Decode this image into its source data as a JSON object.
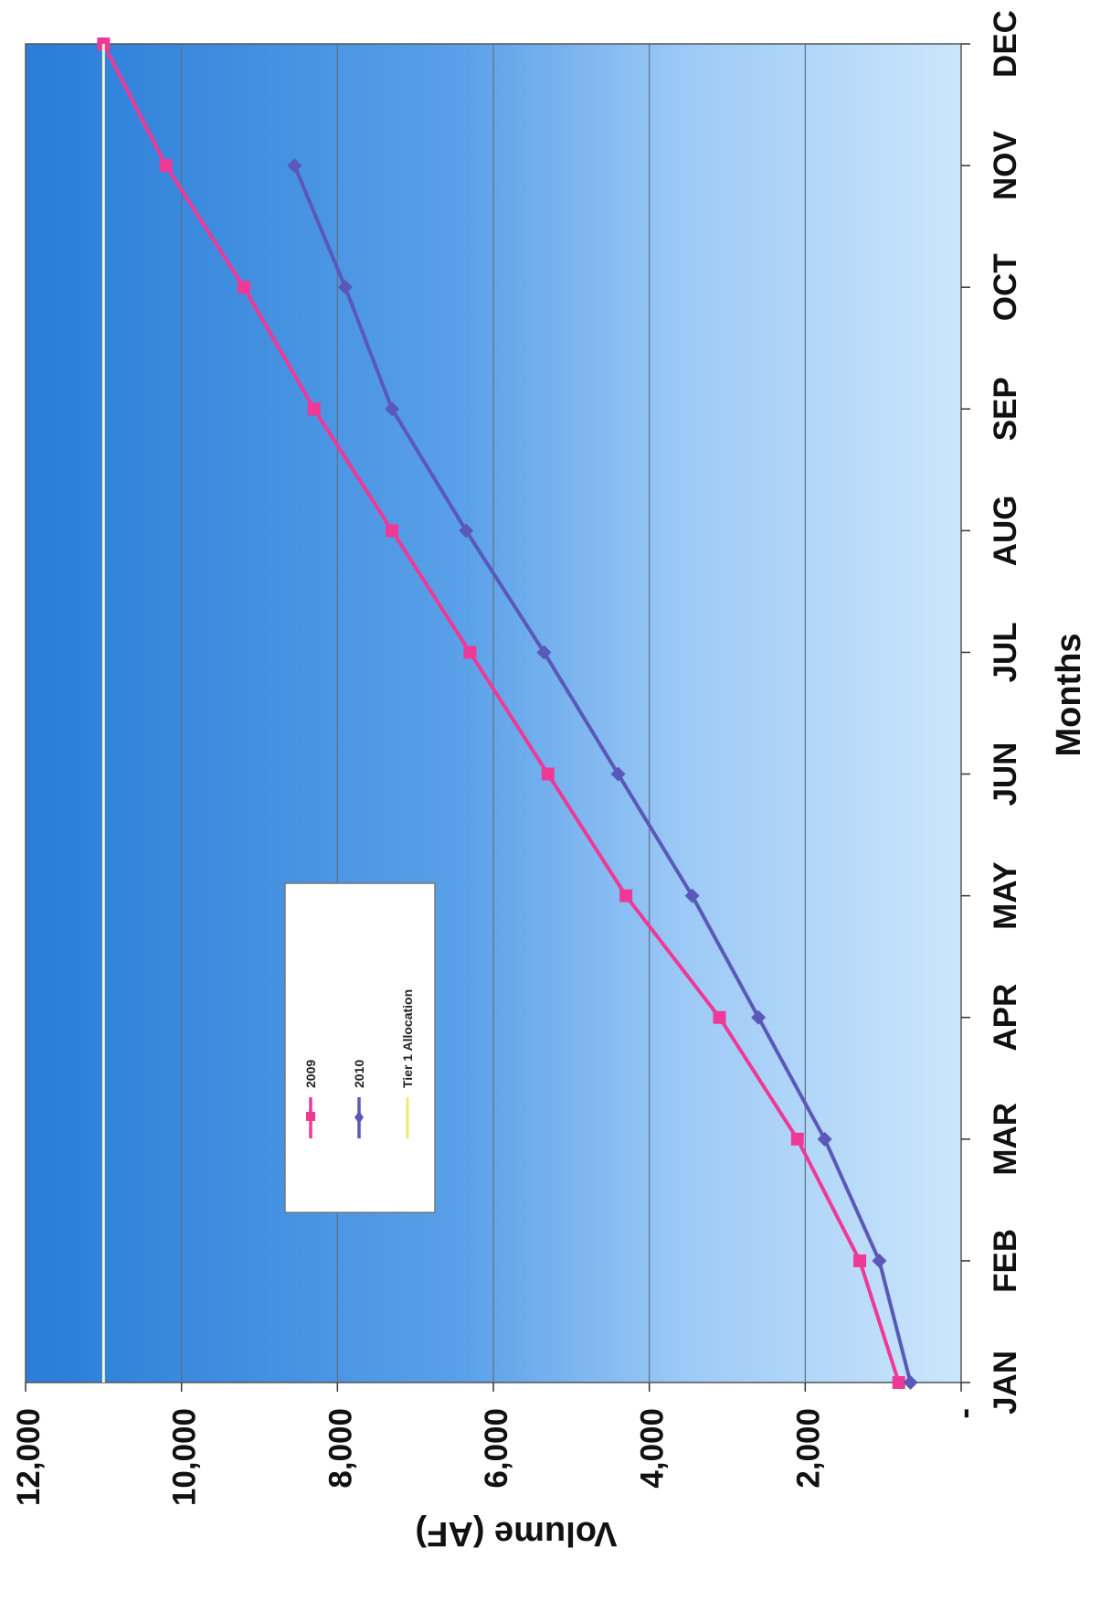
{
  "chart_data": {
    "type": "line",
    "orientation": "rotated 90 degrees clockwise (page is landscape chart printed in portrait)",
    "xlabel": "Months",
    "ylabel": "Volume (AF)",
    "categories": [
      "JAN",
      "FEB",
      "MAR",
      "APR",
      "MAY",
      "JUN",
      "JUL",
      "AUG",
      "SEP",
      "OCT",
      "NOV",
      "DEC"
    ],
    "y_ticks": [
      {
        "value": 0,
        "label": "-"
      },
      {
        "value": 2000,
        "label": "2,000"
      },
      {
        "value": 4000,
        "label": "4,000"
      },
      {
        "value": 6000,
        "label": "6,000"
      },
      {
        "value": 8000,
        "label": "8,000"
      },
      {
        "value": 10000,
        "label": "10,000"
      },
      {
        "value": 12000,
        "label": "12,000"
      }
    ],
    "ylim": [
      0,
      12000
    ],
    "grid": "horizontal gridlines at y ticks",
    "series": [
      {
        "name": "2009",
        "color": "#ee3a96",
        "marker": "square",
        "values": [
          800,
          1300,
          2100,
          3100,
          4300,
          5300,
          6300,
          7300,
          8300,
          9200,
          10200,
          11000
        ]
      },
      {
        "name": "2010",
        "color": "#5a58b8",
        "marker": "diamond",
        "values": [
          650,
          1050,
          1750,
          2600,
          3450,
          4400,
          5350,
          6350,
          7300,
          7900,
          8550,
          null
        ]
      },
      {
        "name": "Tier 1 Allocation",
        "color": "#f4f2b0",
        "marker": "none",
        "values": [
          11000,
          11000,
          11000,
          11000,
          11000,
          11000,
          11000,
          11000,
          11000,
          11000,
          11000,
          11000
        ]
      }
    ],
    "legend": {
      "position": "inside plot, left-center",
      "entries": [
        "2009",
        "2010",
        "Tier 1 Allocation"
      ]
    },
    "plot_background": "gradient dark blue to light blue"
  }
}
